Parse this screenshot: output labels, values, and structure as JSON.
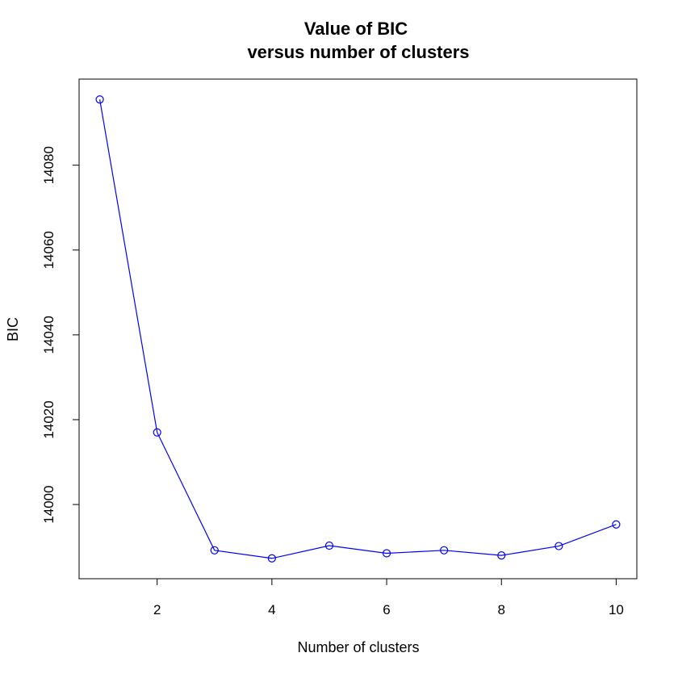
{
  "chart_data": {
    "type": "line",
    "title": "Value of BIC",
    "subtitle": "versus number of clusters",
    "xlabel": "Number of clusters",
    "ylabel": "BIC",
    "x": [
      1,
      2,
      3,
      4,
      5,
      6,
      7,
      8,
      9,
      10
    ],
    "series": [
      {
        "values": [
          14095.5,
          14017.0,
          13989.2,
          13987.3,
          13990.3,
          13988.5,
          13989.2,
          13988.0,
          13990.2,
          13995.3
        ],
        "color": "#0000ff",
        "marker": "open-circle"
      }
    ],
    "xticks": [
      2,
      4,
      6,
      8,
      10
    ],
    "yticks": [
      14000,
      14020,
      14040,
      14060,
      14080
    ],
    "xlim": [
      0.64,
      10.36
    ],
    "ylim": [
      13982.5,
      14100.3
    ],
    "grid": false,
    "legend": "none"
  }
}
